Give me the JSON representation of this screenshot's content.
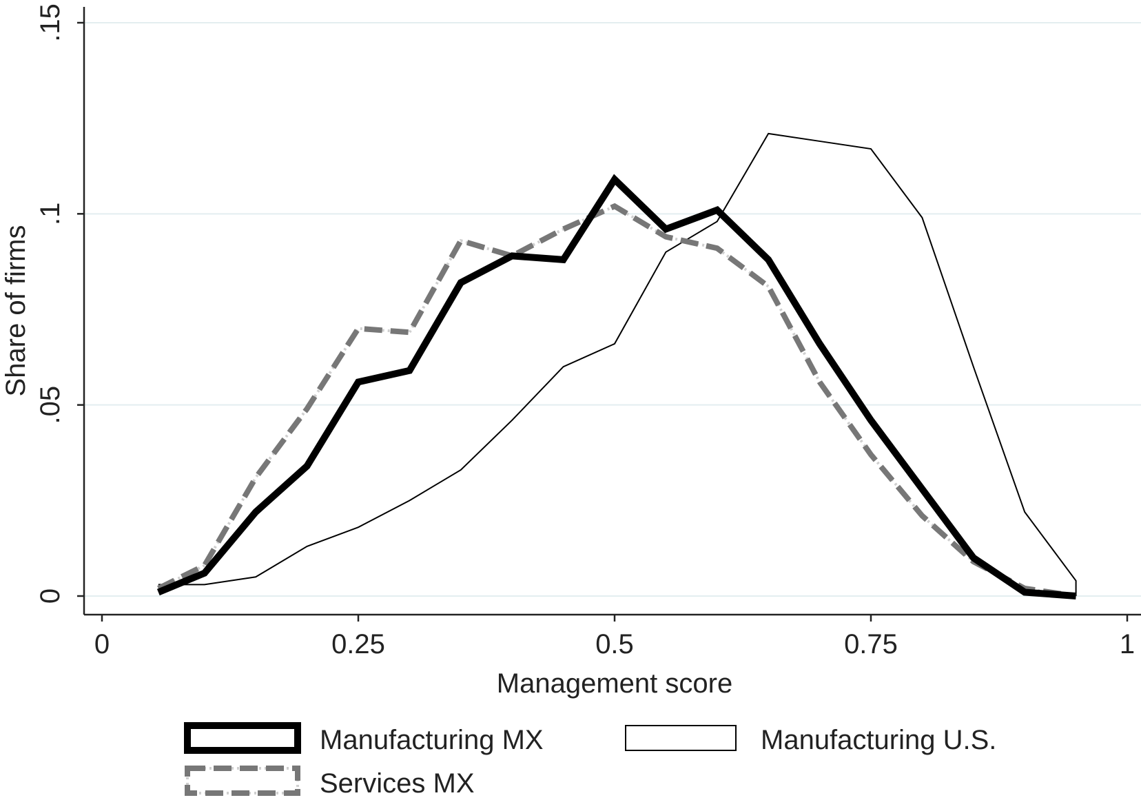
{
  "chart_data": {
    "type": "line",
    "xlabel": "Management score",
    "ylabel": "Share of firms",
    "xlim": [
      0,
      1
    ],
    "ylim": [
      0,
      0.15
    ],
    "xticks": [
      0,
      0.25,
      0.5,
      0.75,
      1
    ],
    "xtick_labels": [
      "0",
      "0.25",
      "0.5",
      "0.75",
      "1"
    ],
    "yticks": [
      0,
      0.05,
      0.1,
      0.15
    ],
    "ytick_labels": [
      "0",
      ".05",
      ".1",
      ".15"
    ],
    "grid": "horizontal",
    "legend_position": "bottom",
    "series": [
      {
        "name": "Manufacturing MX",
        "style": "thick-solid",
        "color": "#000000",
        "x": [
          0.055,
          0.1,
          0.15,
          0.2,
          0.25,
          0.3,
          0.35,
          0.4,
          0.45,
          0.5,
          0.55,
          0.6,
          0.65,
          0.7,
          0.75,
          0.8,
          0.85,
          0.9,
          0.95
        ],
        "values": [
          0.001,
          0.006,
          0.022,
          0.034,
          0.056,
          0.059,
          0.082,
          0.089,
          0.088,
          0.109,
          0.096,
          0.101,
          0.088,
          0.066,
          0.046,
          0.028,
          0.01,
          0.001,
          0.0
        ]
      },
      {
        "name": "Manufacturing U.S.",
        "style": "thin-solid",
        "color": "#000000",
        "x": [
          0.055,
          0.1,
          0.15,
          0.2,
          0.25,
          0.3,
          0.35,
          0.4,
          0.45,
          0.5,
          0.55,
          0.6,
          0.65,
          0.7,
          0.75,
          0.8,
          0.85,
          0.9,
          0.95,
          0.95
        ],
        "values": [
          0.003,
          0.003,
          0.005,
          0.013,
          0.018,
          0.025,
          0.033,
          0.046,
          0.06,
          0.066,
          0.09,
          0.098,
          0.121,
          0.119,
          0.117,
          0.099,
          0.06,
          0.022,
          0.004,
          0.0
        ]
      },
      {
        "name": "Services MX",
        "style": "gray-dashed",
        "color": "#777777",
        "x": [
          0.055,
          0.1,
          0.15,
          0.2,
          0.25,
          0.3,
          0.35,
          0.4,
          0.45,
          0.5,
          0.55,
          0.6,
          0.65,
          0.7,
          0.75,
          0.8,
          0.85,
          0.9,
          0.95
        ],
        "values": [
          0.002,
          0.008,
          0.031,
          0.049,
          0.07,
          0.069,
          0.093,
          0.089,
          0.096,
          0.102,
          0.094,
          0.091,
          0.081,
          0.056,
          0.037,
          0.021,
          0.009,
          0.002,
          0.0
        ]
      }
    ]
  }
}
